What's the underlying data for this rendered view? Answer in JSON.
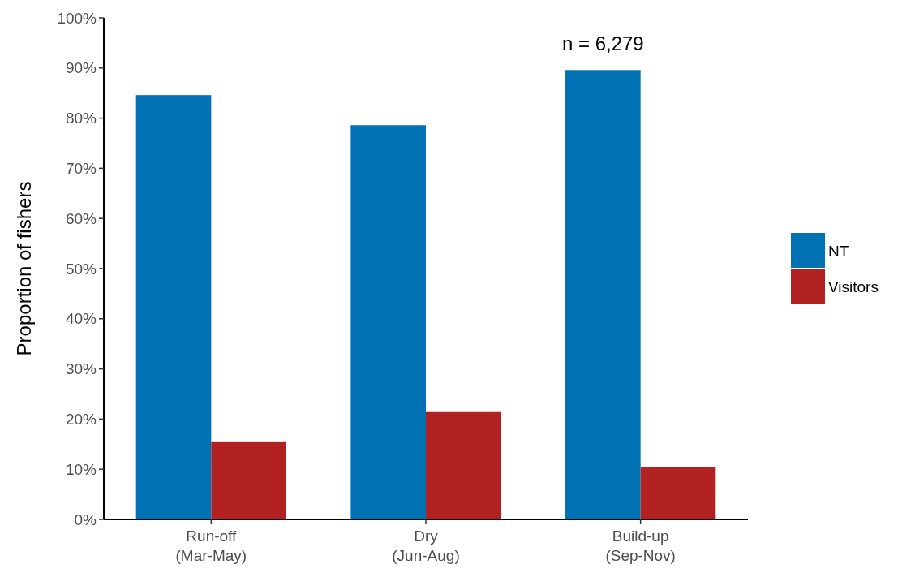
{
  "chart_data": {
    "type": "bar",
    "ylabel": "Proportion of fishers",
    "categories": [
      "Run-off\n(Mar-May)",
      "Dry\n(Jun-Aug)",
      "Build-up\n(Sep-Nov)"
    ],
    "series": [
      {
        "name": "NT",
        "color": "#0071b3",
        "values": [
          84.6,
          78.6,
          89.6
        ]
      },
      {
        "name": "Visitors",
        "color": "#b22222",
        "values": [
          15.4,
          21.4,
          10.4
        ]
      }
    ],
    "ylim": [
      0,
      100
    ],
    "yticks": [
      {
        "value": 0,
        "label": "0%"
      },
      {
        "value": 10,
        "label": "10%"
      },
      {
        "value": 20,
        "label": "20%"
      },
      {
        "value": 30,
        "label": "30%"
      },
      {
        "value": 40,
        "label": "40%"
      },
      {
        "value": 50,
        "label": "50%"
      },
      {
        "value": 60,
        "label": "60%"
      },
      {
        "value": 70,
        "label": "70%"
      },
      {
        "value": 80,
        "label": "80%"
      },
      {
        "value": 90,
        "label": "90%"
      },
      {
        "value": 100,
        "label": "100%"
      }
    ],
    "annotations": [
      "n = 6,279"
    ],
    "legend": "right",
    "grid": false
  }
}
